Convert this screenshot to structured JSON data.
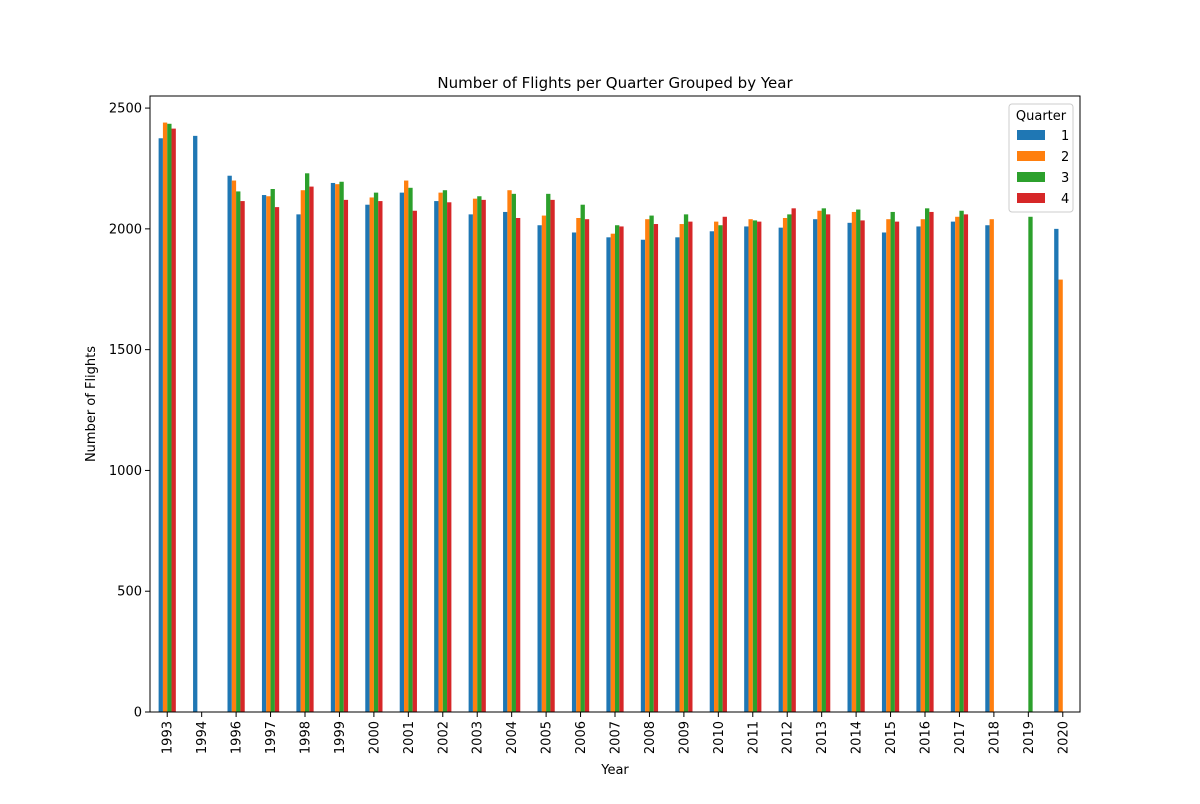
{
  "chart_data": {
    "type": "bar",
    "title": "Number of Flights per Quarter Grouped by Year",
    "xlabel": "Year",
    "ylabel": "Number of Flights",
    "ylim": [
      0,
      2550
    ],
    "yticks": [
      0,
      500,
      1000,
      1500,
      2000,
      2500
    ],
    "grid": false,
    "legend_title": "Quarter",
    "legend_position": "top-right",
    "categories": [
      "1993",
      "1994",
      "1996",
      "1997",
      "1998",
      "1999",
      "2000",
      "2001",
      "2002",
      "2003",
      "2004",
      "2005",
      "2006",
      "2007",
      "2008",
      "2009",
      "2010",
      "2011",
      "2012",
      "2013",
      "2014",
      "2015",
      "2016",
      "2017",
      "2018",
      "2019",
      "2020"
    ],
    "series": [
      {
        "name": "1",
        "color": "#1f77b4",
        "values": [
          2375,
          2385,
          2220,
          2140,
          2060,
          2190,
          2100,
          2150,
          2115,
          2060,
          2070,
          2015,
          1985,
          1965,
          1955,
          1965,
          1990,
          2010,
          2005,
          2040,
          2025,
          1985,
          2010,
          2030,
          2015,
          null,
          2000
        ]
      },
      {
        "name": "2",
        "color": "#ff7f0e",
        "values": [
          2440,
          null,
          2200,
          2135,
          2160,
          2185,
          2130,
          2200,
          2150,
          2125,
          2160,
          2055,
          2045,
          1980,
          2040,
          2020,
          2030,
          2040,
          2045,
          2075,
          2070,
          2040,
          2040,
          2050,
          2040,
          null,
          1790
        ]
      },
      {
        "name": "3",
        "color": "#2ca02c",
        "values": [
          2435,
          null,
          2155,
          2165,
          2230,
          2195,
          2150,
          2170,
          2160,
          2135,
          2145,
          2145,
          2100,
          2015,
          2055,
          2060,
          2015,
          2035,
          2060,
          2085,
          2080,
          2070,
          2085,
          2075,
          null,
          2050,
          null
        ]
      },
      {
        "name": "4",
        "color": "#d62728",
        "values": [
          2415,
          null,
          2115,
          2090,
          2175,
          2120,
          2115,
          2075,
          2110,
          2120,
          2045,
          2120,
          2040,
          2010,
          2020,
          2030,
          2050,
          2030,
          2085,
          2060,
          2035,
          2030,
          2070,
          2060,
          null,
          null,
          null
        ]
      }
    ]
  }
}
